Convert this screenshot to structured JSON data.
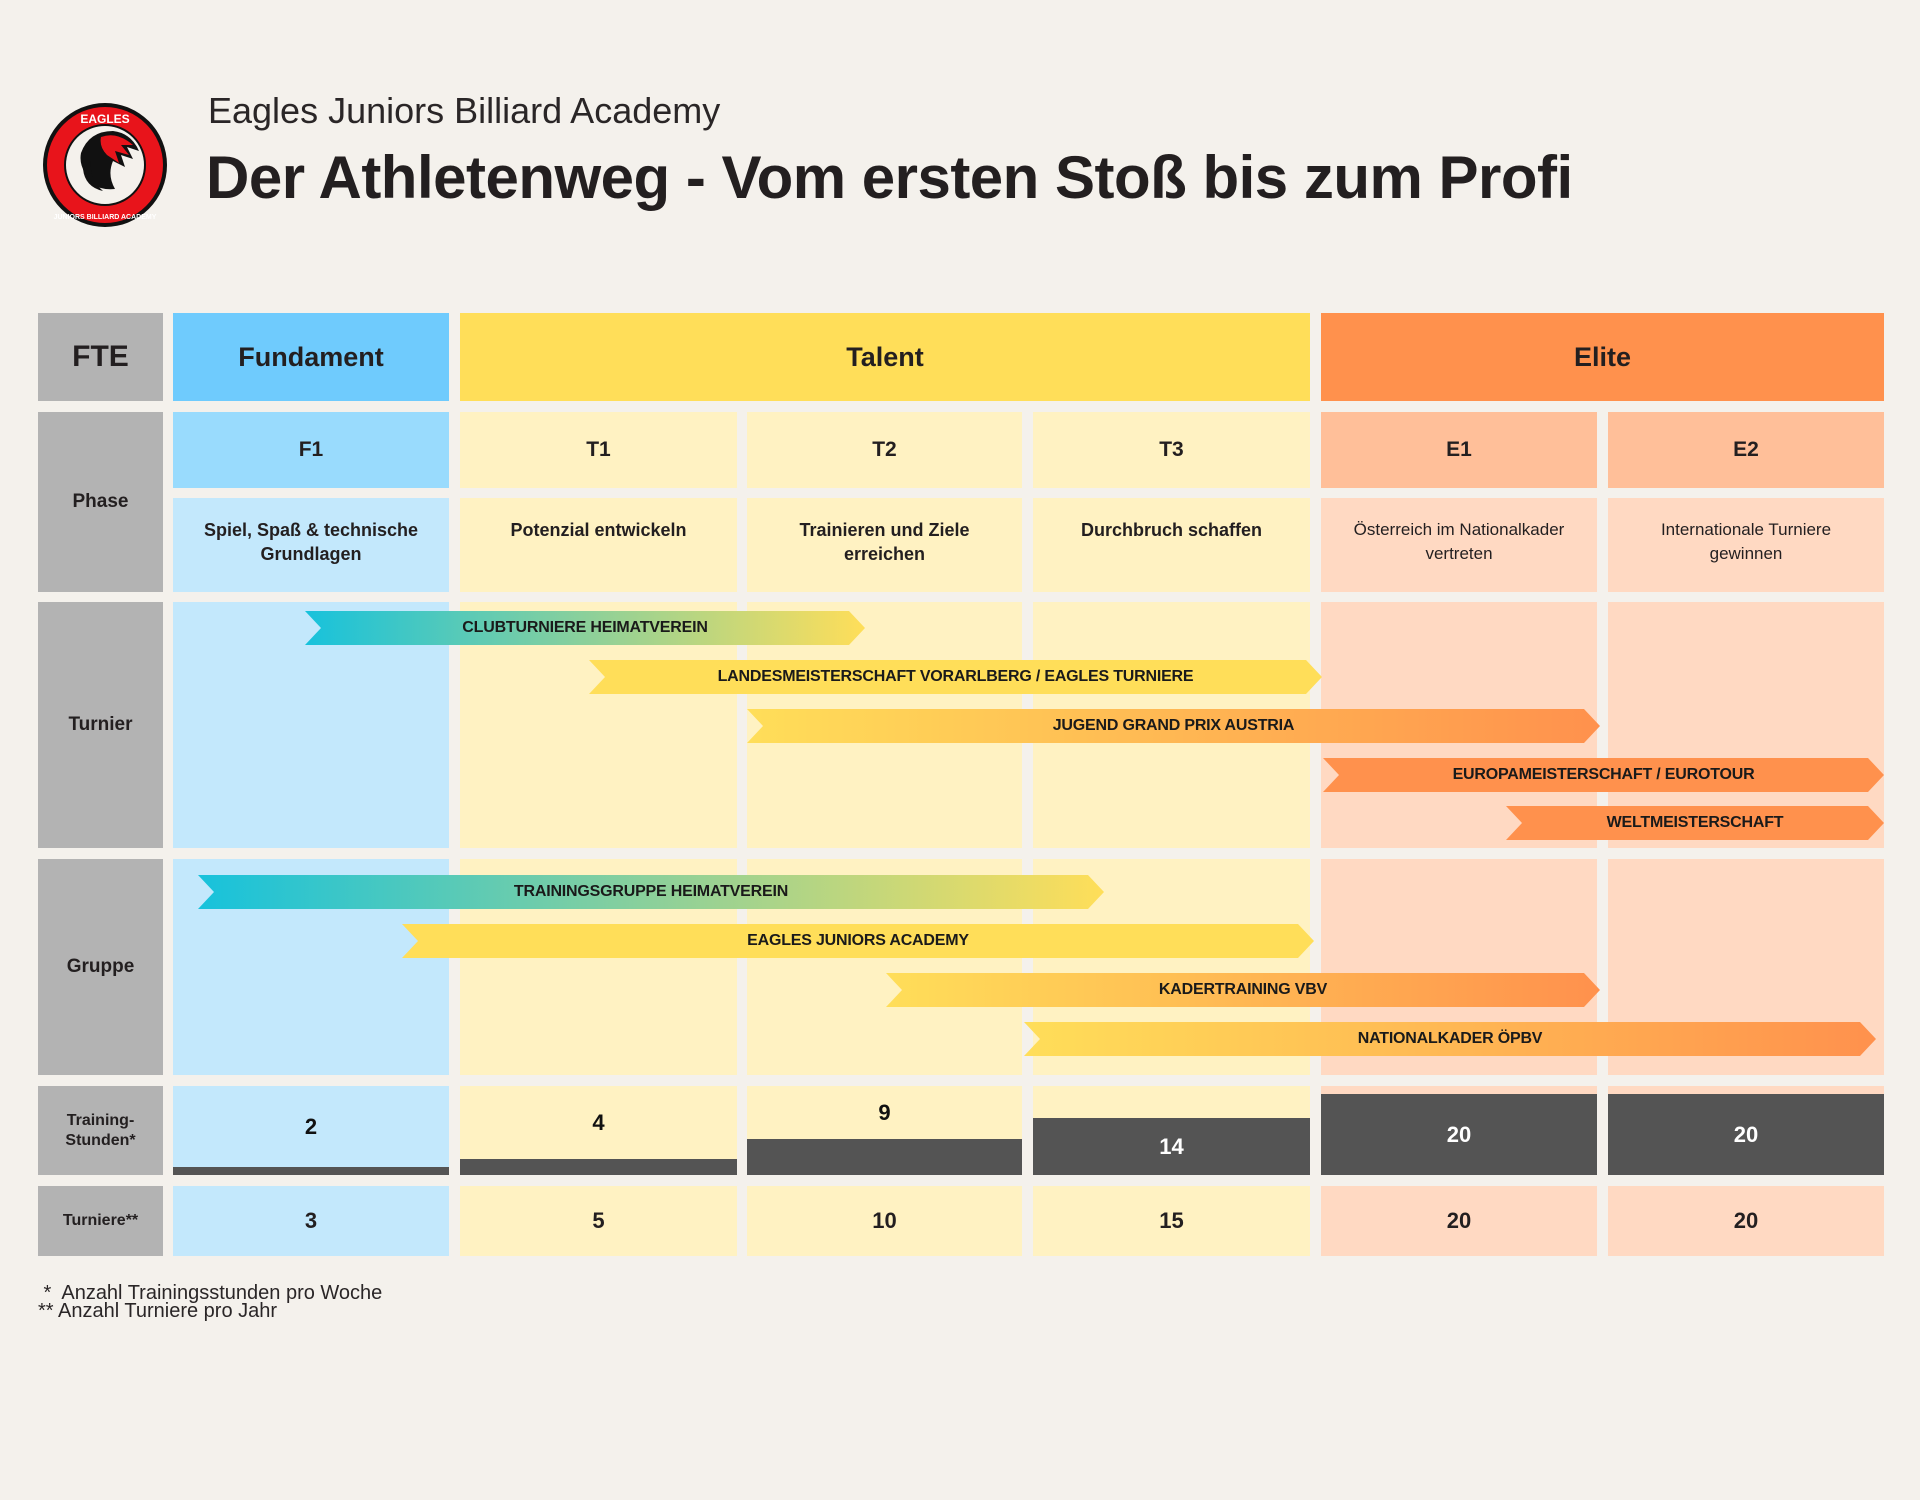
{
  "header": {
    "subtitle": "Eagles Juniors Billiard Academy",
    "title": "Der Athletenweg - Vom ersten Stoß bis zum Profi",
    "logo": {
      "icon": "eagle-logo-icon",
      "top_text": "EAGLES",
      "bottom_text": "JUNIORS BILLIARD ACADEMY"
    }
  },
  "colors": {
    "background": "#f4f1ec",
    "label": "#b3b3b3",
    "fundament": {
      "head": "#6fcbfd",
      "code": "#99dbfd",
      "light": "#c3e8fc"
    },
    "talent": {
      "head": "#ffde59",
      "code": "#fff2c2",
      "light": "#fff2c2"
    },
    "elite": {
      "head": "#ff914d",
      "code": "#ffbf99",
      "light": "#ffd9c2"
    },
    "bar": "#545454"
  },
  "row_labels": {
    "fte": "FTE",
    "phase": "Phase",
    "turnier": "Turnier",
    "gruppe": "Gruppe",
    "training": "Training-\nStunden*",
    "turniere": "Turniere**"
  },
  "groups": [
    {
      "label": "Fundament",
      "key": "fundament"
    },
    {
      "label": "Talent",
      "key": "talent"
    },
    {
      "label": "Elite",
      "key": "elite"
    }
  ],
  "phases": [
    {
      "code": "F1",
      "description": "Spiel, Spaß & technische Grundlagen",
      "group": "fundament",
      "training_hours": 2,
      "tournaments": 3
    },
    {
      "code": "T1",
      "description": "Potenzial entwickeln",
      "group": "talent",
      "training_hours": 4,
      "tournaments": 5
    },
    {
      "code": "T2",
      "description": "Trainieren und Ziele erreichen",
      "group": "talent",
      "training_hours": 9,
      "tournaments": 10
    },
    {
      "code": "T3",
      "description": "Durchbruch schaffen",
      "group": "talent",
      "training_hours": 14,
      "tournaments": 15
    },
    {
      "code": "E1",
      "description": "Österreich im Nationalkader vertreten",
      "group": "elite",
      "training_hours": 20,
      "tournaments": 20
    },
    {
      "code": "E2",
      "description": "Internationale Turniere gewinnen",
      "group": "elite",
      "training_hours": 20,
      "tournaments": 20
    }
  ],
  "training_max": 20,
  "tournament_arrows": [
    {
      "label": "CLUBTURNIERE HEIMATVEREIN",
      "gradient": [
        "#17c2dc",
        "#ffde59"
      ],
      "span": "F1 – T2"
    },
    {
      "label": "LANDESMEISTERSCHAFT VORARLBERG / EAGLES TURNIERE",
      "gradient": [
        "#ffde59",
        "#ffde59"
      ],
      "span": "T1 – T3"
    },
    {
      "label": "JUGEND GRAND PRIX AUSTRIA",
      "gradient": [
        "#ffde59",
        "#ff914d"
      ],
      "span": "T2 – E1"
    },
    {
      "label": "EUROPAMEISTERSCHAFT / EUROTOUR",
      "gradient": [
        "#ff914d",
        "#ff914d"
      ],
      "span": "E1 – E2"
    },
    {
      "label": "WELTMEISTERSCHAFT",
      "gradient": [
        "#ff914d",
        "#ff914d"
      ],
      "span": "E1 – E2"
    }
  ],
  "group_arrows": [
    {
      "label": "TRAININGSGRUPPE HEIMATVEREIN",
      "gradient": [
        "#17c2dc",
        "#ffde59"
      ],
      "span": "F1 – T3"
    },
    {
      "label": "EAGLES JUNIORS ACADEMY",
      "gradient": [
        "#ffde59",
        "#ffde59"
      ],
      "span": "F1 – T3"
    },
    {
      "label": "KADERTRAINING VBV",
      "gradient": [
        "#ffde59",
        "#ff914d"
      ],
      "span": "T2 – E1"
    },
    {
      "label": "NATIONALKADER ÖPBV",
      "gradient": [
        "#ffde59",
        "#ff914d"
      ],
      "span": "T3 – E2"
    }
  ],
  "footnotes": [
    " *  Anzahl Trainingsstunden pro Woche",
    "** Anzahl Turniere pro Jahr"
  ]
}
